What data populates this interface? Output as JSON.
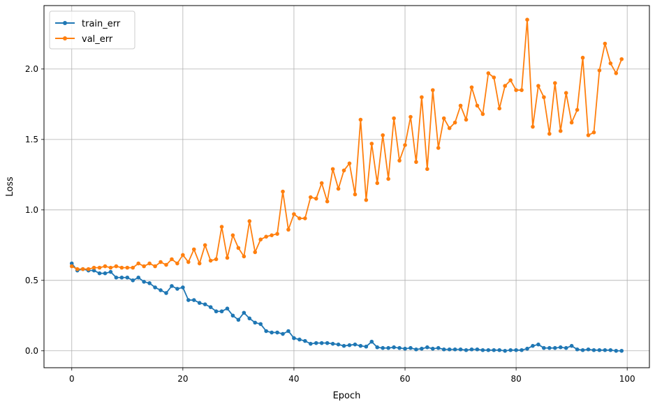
{
  "chart_data": {
    "type": "line",
    "xlabel": "Epoch",
    "ylabel": "Loss",
    "xlim": [
      -5,
      104
    ],
    "ylim": [
      -0.12,
      2.45
    ],
    "xticks": [
      0,
      20,
      40,
      60,
      80,
      100
    ],
    "yticks": [
      0.0,
      0.5,
      1.0,
      1.5,
      2.0
    ],
    "xtick_labels": [
      "0",
      "20",
      "40",
      "60",
      "80",
      "100"
    ],
    "ytick_labels": [
      "0.0",
      "0.5",
      "1.0",
      "1.5",
      "2.0"
    ],
    "grid": true,
    "legend_position": "top-left",
    "x": [
      0,
      1,
      2,
      3,
      4,
      5,
      6,
      7,
      8,
      9,
      10,
      11,
      12,
      13,
      14,
      15,
      16,
      17,
      18,
      19,
      20,
      21,
      22,
      23,
      24,
      25,
      26,
      27,
      28,
      29,
      30,
      31,
      32,
      33,
      34,
      35,
      36,
      37,
      38,
      39,
      40,
      41,
      42,
      43,
      44,
      45,
      46,
      47,
      48,
      49,
      50,
      51,
      52,
      53,
      54,
      55,
      56,
      57,
      58,
      59,
      60,
      61,
      62,
      63,
      64,
      65,
      66,
      67,
      68,
      69,
      70,
      71,
      72,
      73,
      74,
      75,
      76,
      77,
      78,
      79,
      80,
      81,
      82,
      83,
      84,
      85,
      86,
      87,
      88,
      89,
      90,
      91,
      92,
      93,
      94,
      95,
      96,
      97,
      98,
      99
    ],
    "series": [
      {
        "name": "train_err",
        "color": "#1f77b4",
        "values": [
          0.62,
          0.57,
          0.58,
          0.57,
          0.57,
          0.55,
          0.55,
          0.56,
          0.52,
          0.52,
          0.52,
          0.5,
          0.52,
          0.49,
          0.48,
          0.45,
          0.43,
          0.41,
          0.46,
          0.44,
          0.45,
          0.36,
          0.36,
          0.34,
          0.33,
          0.31,
          0.28,
          0.28,
          0.3,
          0.25,
          0.22,
          0.27,
          0.23,
          0.2,
          0.19,
          0.14,
          0.13,
          0.13,
          0.12,
          0.14,
          0.09,
          0.08,
          0.07,
          0.05,
          0.055,
          0.055,
          0.055,
          0.05,
          0.045,
          0.035,
          0.04,
          0.045,
          0.035,
          0.03,
          0.065,
          0.025,
          0.02,
          0.02,
          0.025,
          0.02,
          0.015,
          0.02,
          0.01,
          0.015,
          0.025,
          0.015,
          0.02,
          0.01,
          0.01,
          0.01,
          0.01,
          0.005,
          0.01,
          0.01,
          0.005,
          0.005,
          0.005,
          0.005,
          0.0,
          0.005,
          0.005,
          0.005,
          0.015,
          0.035,
          0.045,
          0.02,
          0.02,
          0.02,
          0.025,
          0.02,
          0.035,
          0.01,
          0.005,
          0.01,
          0.005,
          0.005,
          0.005,
          0.005,
          0.0,
          0.0
        ]
      },
      {
        "name": "val_err",
        "color": "#ff7f0e",
        "values": [
          0.6,
          0.58,
          0.58,
          0.58,
          0.59,
          0.59,
          0.6,
          0.59,
          0.6,
          0.59,
          0.59,
          0.59,
          0.62,
          0.6,
          0.62,
          0.6,
          0.63,
          0.61,
          0.65,
          0.62,
          0.68,
          0.63,
          0.72,
          0.62,
          0.75,
          0.64,
          0.65,
          0.88,
          0.66,
          0.82,
          0.73,
          0.67,
          0.92,
          0.7,
          0.79,
          0.81,
          0.82,
          0.83,
          1.13,
          0.86,
          0.97,
          0.94,
          0.94,
          1.09,
          1.08,
          1.19,
          1.06,
          1.29,
          1.15,
          1.28,
          1.33,
          1.11,
          1.64,
          1.07,
          1.47,
          1.19,
          1.53,
          1.22,
          1.65,
          1.35,
          1.46,
          1.66,
          1.34,
          1.8,
          1.29,
          1.85,
          1.44,
          1.65,
          1.58,
          1.62,
          1.74,
          1.64,
          1.87,
          1.74,
          1.68,
          1.97,
          1.94,
          1.72,
          1.88,
          1.92,
          1.85,
          1.85,
          2.35,
          1.59,
          1.88,
          1.8,
          1.54,
          1.9,
          1.56,
          1.83,
          1.62,
          1.71,
          2.08,
          1.53,
          1.55,
          1.99,
          2.18,
          2.04,
          1.97,
          2.07
        ]
      }
    ]
  }
}
